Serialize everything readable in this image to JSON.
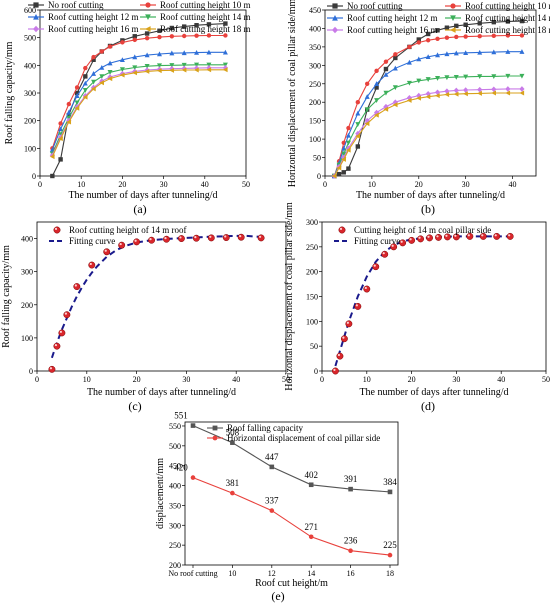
{
  "chart_data": [
    {
      "id": "a",
      "panel_label": "(a)",
      "type": "line",
      "xlabel": "The number of days after tunneling/d",
      "ylabel": "Roof falling capacity/mm",
      "xlim": [
        0,
        50
      ],
      "ylim": [
        0,
        600
      ],
      "xticks": [
        "0",
        "10",
        "20",
        "30",
        "40",
        "50"
      ],
      "yticks": [
        "0",
        "100",
        "200",
        "300",
        "400",
        "500",
        "600"
      ],
      "legend_position": "top-left",
      "x": [
        3,
        5,
        7,
        9,
        11,
        13,
        15,
        17,
        20,
        23,
        26,
        29,
        32,
        35,
        38,
        41,
        45
      ],
      "series": [
        {
          "name": "No roof cutting",
          "color": "#3a3a3a",
          "marker": "square",
          "values": [
            0,
            60,
            220,
            300,
            360,
            420,
            450,
            470,
            490,
            505,
            515,
            525,
            535,
            540,
            545,
            548,
            551
          ]
        },
        {
          "name": "Roof cutting height 10 m",
          "color": "#e8413c",
          "marker": "circle",
          "values": [
            100,
            190,
            260,
            320,
            390,
            430,
            450,
            468,
            483,
            492,
            498,
            502,
            505,
            506,
            507,
            508,
            508
          ]
        },
        {
          "name": "Roof cutting height 12 m",
          "color": "#2f6fd8",
          "marker": "triangle-up",
          "values": [
            95,
            170,
            230,
            290,
            335,
            370,
            392,
            408,
            420,
            430,
            437,
            441,
            444,
            445,
            446,
            447,
            447
          ]
        },
        {
          "name": "Roof cutting height 14 m",
          "color": "#3cb05a",
          "marker": "triangle-down",
          "values": [
            80,
            150,
            210,
            265,
            310,
            340,
            360,
            375,
            385,
            392,
            397,
            399,
            400,
            401,
            402,
            402,
            402
          ]
        },
        {
          "name": "Roof cutting height 16 m",
          "color": "#c97be8",
          "marker": "diamond",
          "values": [
            75,
            140,
            200,
            250,
            290,
            320,
            343,
            358,
            370,
            378,
            383,
            386,
            388,
            389,
            390,
            391,
            391
          ]
        },
        {
          "name": "Roof cutting height 18 m",
          "color": "#d9a21b",
          "marker": "triangle-left",
          "values": [
            70,
            135,
            195,
            245,
            285,
            315,
            337,
            352,
            365,
            373,
            378,
            381,
            382,
            383,
            383,
            384,
            384
          ]
        }
      ]
    },
    {
      "id": "b",
      "panel_label": "(b)",
      "type": "line",
      "xlabel": "The number of days after tunneling/d",
      "ylabel": "Horizontal displacement of coal pillar side/mm",
      "xlim": [
        0,
        45
      ],
      "ylim": [
        0,
        450
      ],
      "xticks": [
        "0",
        "10",
        "20",
        "30",
        "40"
      ],
      "yticks": [
        "0",
        "50",
        "100",
        "150",
        "200",
        "250",
        "300",
        "350",
        "400",
        "450"
      ],
      "legend_position": "top-left",
      "x": [
        2,
        3,
        4,
        5,
        7,
        9,
        11,
        13,
        15,
        18,
        20,
        22,
        24,
        26,
        28,
        30,
        33,
        36,
        39,
        42
      ],
      "series": [
        {
          "name": "No roof cutting",
          "color": "#3a3a3a",
          "marker": "square",
          "values": [
            0,
            5,
            10,
            20,
            80,
            180,
            240,
            290,
            320,
            350,
            370,
            385,
            395,
            402,
            407,
            410,
            414,
            417,
            419,
            420
          ]
        },
        {
          "name": "Roof cutting height 10 m",
          "color": "#e8413c",
          "marker": "circle",
          "values": [
            0,
            40,
            90,
            130,
            200,
            250,
            285,
            310,
            330,
            350,
            362,
            368,
            372,
            375,
            377,
            378,
            379,
            380,
            381,
            381
          ]
        },
        {
          "name": "Roof cutting height 12 m",
          "color": "#2f6fd8",
          "marker": "triangle-up",
          "values": [
            0,
            35,
            75,
            110,
            170,
            215,
            250,
            275,
            292,
            308,
            317,
            323,
            328,
            331,
            333,
            334,
            335,
            336,
            337,
            337
          ]
        },
        {
          "name": "Roof cutting height 14 m",
          "color": "#3cb05a",
          "marker": "triangle-down",
          "values": [
            0,
            30,
            60,
            90,
            140,
            180,
            205,
            225,
            240,
            252,
            258,
            262,
            265,
            267,
            268,
            269,
            270,
            270,
            271,
            271
          ]
        },
        {
          "name": "Roof cutting height 16 m",
          "color": "#c97be8",
          "marker": "diamond",
          "values": [
            0,
            25,
            50,
            75,
            115,
            150,
            172,
            188,
            200,
            212,
            218,
            223,
            227,
            230,
            232,
            233,
            234,
            235,
            236,
            236
          ]
        },
        {
          "name": "Roof cutting height 18 m",
          "color": "#d9a21b",
          "marker": "triangle-left",
          "values": [
            0,
            22,
            45,
            70,
            108,
            142,
            165,
            181,
            193,
            205,
            211,
            215,
            218,
            221,
            222,
            223,
            224,
            225,
            225,
            225
          ]
        }
      ]
    },
    {
      "id": "c",
      "panel_label": "(c)",
      "type": "scatter",
      "xlabel": "The number of days after tunneling/d",
      "ylabel": "Roof falling capacity/mm",
      "xlim": [
        0,
        50
      ],
      "ylim": [
        0,
        450
      ],
      "xticks": [
        "0",
        "10",
        "20",
        "30",
        "40",
        "50"
      ],
      "yticks": [
        "0",
        "100",
        "200",
        "300",
        "400"
      ],
      "legend_position": "top-left",
      "series": [
        {
          "name": "Roof cutting height of 14 m roof",
          "color": "#d9262c",
          "kind": "points",
          "x": [
            3,
            4,
            5,
            6,
            8,
            11,
            14,
            17,
            20,
            23,
            26,
            29,
            32,
            35,
            38,
            41,
            45
          ],
          "values": [
            5,
            75,
            115,
            170,
            255,
            320,
            360,
            380,
            390,
            395,
            398,
            400,
            401,
            402,
            403,
            404,
            402
          ]
        },
        {
          "name": "Fitting curve",
          "color": "#1a1a8c",
          "kind": "dashed-line",
          "x": [
            3,
            4,
            5,
            6,
            7,
            8,
            9,
            10,
            11,
            12,
            14,
            16,
            18,
            20,
            23,
            26,
            30,
            34,
            38,
            40,
            42,
            45
          ],
          "values": [
            40,
            85,
            125,
            160,
            195,
            225,
            252,
            276,
            297,
            315,
            345,
            366,
            379,
            388,
            395,
            399,
            402,
            405,
            407,
            408,
            408,
            405
          ]
        }
      ]
    },
    {
      "id": "d",
      "panel_label": "(d)",
      "type": "scatter",
      "xlabel": "The number of days after tunneling/d",
      "ylabel": "Horizontal displacement of coal pillar side/mm",
      "xlim": [
        0,
        50
      ],
      "ylim": [
        0,
        300
      ],
      "xticks": [
        "0",
        "10",
        "20",
        "30",
        "40",
        "50"
      ],
      "yticks": [
        "0",
        "50",
        "100",
        "150",
        "200",
        "250",
        "300"
      ],
      "legend_position": "top-left",
      "series": [
        {
          "name": "Cutting height of 14 m coal pillar side",
          "color": "#d9262c",
          "kind": "points",
          "x": [
            3,
            4,
            5,
            6,
            8,
            10,
            12,
            14,
            16,
            18,
            20,
            22,
            24,
            26,
            28,
            30,
            33,
            36,
            39,
            42
          ],
          "values": [
            0,
            30,
            65,
            95,
            130,
            165,
            210,
            235,
            250,
            258,
            263,
            266,
            268,
            269,
            270,
            270,
            271,
            271,
            271,
            271
          ]
        },
        {
          "name": "Fitting curve",
          "color": "#1a1a8c",
          "kind": "dashed-line",
          "x": [
            3,
            4,
            5,
            6,
            7,
            8,
            9,
            10,
            12,
            14,
            16,
            18,
            20,
            23,
            26,
            30,
            34,
            38,
            42
          ],
          "values": [
            10,
            40,
            70,
            100,
            125,
            150,
            170,
            190,
            220,
            240,
            253,
            261,
            265,
            268,
            270,
            271,
            271,
            271,
            271
          ]
        }
      ]
    },
    {
      "id": "e",
      "panel_label": "(e)",
      "type": "line",
      "xlabel": "Roof cut height/m",
      "ylabel": "displacement/mm",
      "ylim": [
        200,
        560
      ],
      "yticks": [
        "200",
        "250",
        "300",
        "350",
        "400",
        "450",
        "500",
        "550"
      ],
      "categories": [
        "No roof cutting",
        "10",
        "12",
        "14",
        "16",
        "18"
      ],
      "legend_position": "top-center",
      "series": [
        {
          "name": "Roof falling capacity",
          "color": "#555555",
          "marker": "square",
          "values": [
            551,
            508,
            447,
            402,
            391,
            384
          ]
        },
        {
          "name": "Horizontal displacement of coal pillar side",
          "color": "#e8413c",
          "marker": "circle",
          "values": [
            420,
            381,
            337,
            271,
            236,
            225
          ]
        }
      ]
    }
  ]
}
